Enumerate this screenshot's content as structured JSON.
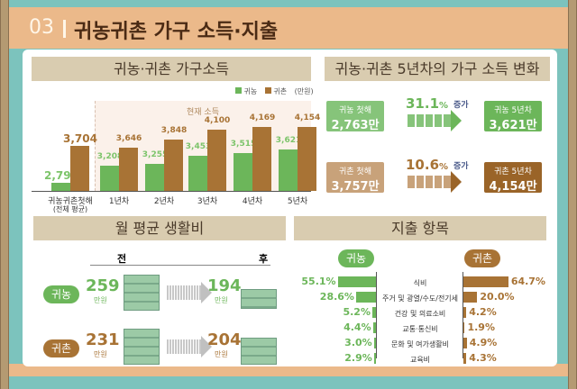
{
  "header": {
    "number": "03",
    "title": "귀농귀촌 가구 소득·지출"
  },
  "colors": {
    "returning_farmer": "#6cb65a",
    "returning_rural": "#a87335"
  },
  "chart_data": [
    {
      "type": "bar",
      "title": "귀농·귀촌 가구소득",
      "unit": "(만원)",
      "annotation": "현재 소득",
      "categories": [
        "귀농귀촌첫해",
        "1년차",
        "2년차",
        "3년차",
        "4년차",
        "5년차"
      ],
      "category_sub": "(전체 평균)",
      "series": [
        {
          "name": "귀농",
          "values": [
            2796,
            3208,
            3255,
            3453,
            3515,
            3621
          ]
        },
        {
          "name": "귀촌",
          "values": [
            3704,
            3646,
            3848,
            4100,
            4169,
            4154
          ]
        }
      ],
      "labels": {
        "귀농": [
          "2,796",
          "3,208",
          "3,255",
          "3,453",
          "3,515",
          "3,621"
        ],
        "귀촌": [
          "3,704",
          "3,646",
          "3,848",
          "4,100",
          "4,169",
          "4,154"
        ]
      },
      "ylim": [
        2600,
        4250
      ],
      "legend": "top-right"
    },
    {
      "type": "bar",
      "title": "지출 항목",
      "categories": [
        "식비",
        "주거 및 광열/수도/전기세",
        "건강 및 의료소비",
        "교통·통신비",
        "문화 및 여가생활비",
        "교육비"
      ],
      "series": [
        {
          "name": "귀농",
          "values": [
            55.1,
            28.6,
            5.2,
            4.4,
            3.0,
            2.9
          ]
        },
        {
          "name": "귀촌",
          "values": [
            64.7,
            20.0,
            4.2,
            1.9,
            4.9,
            4.3
          ]
        }
      ]
    }
  ],
  "change": {
    "title": "귀농·귀촌 5년차의 가구 소득 변화",
    "increase_word": "증가",
    "rows": [
      {
        "from_label": "귀농 첫해",
        "from_value": "2,763만원",
        "pct": "31.1",
        "to_label": "귀농 5년차",
        "to_value": "3,621만원"
      },
      {
        "from_label": "귀촌 첫해",
        "from_value": "3,757만원",
        "pct": "10.6",
        "to_label": "귀촌 5년차",
        "to_value": "4,154만원"
      }
    ]
  },
  "living": {
    "title": "월 평균 생활비",
    "before": "전",
    "after": "후",
    "unit": "만원",
    "rows": [
      {
        "label": "귀농",
        "before": "259",
        "after": "194"
      },
      {
        "label": "귀촌",
        "before": "231",
        "after": "204"
      }
    ]
  }
}
